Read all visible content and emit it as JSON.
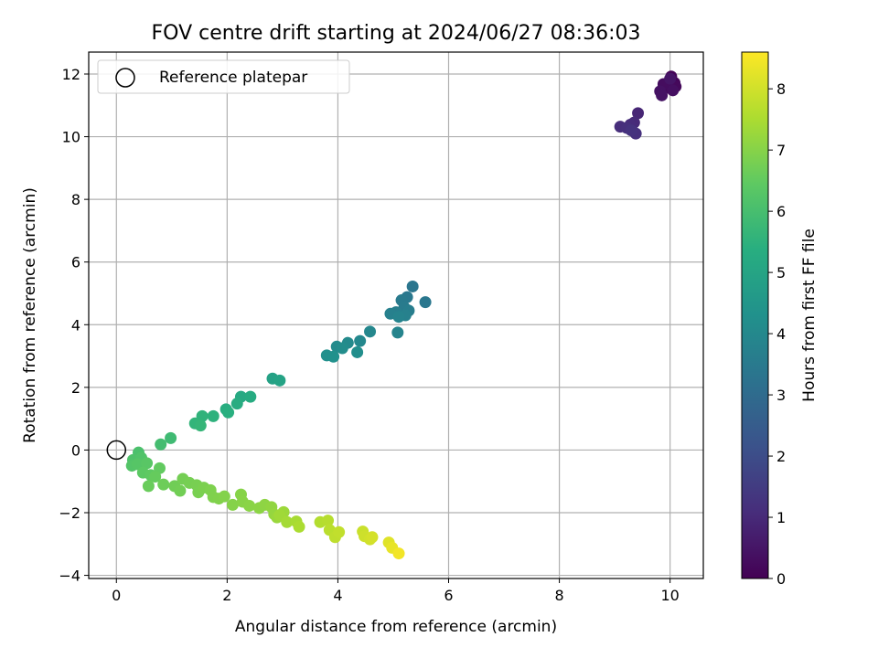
{
  "chart_data": {
    "type": "scatter",
    "title": "FOV centre drift starting at 2024/06/27 08:36:03",
    "xlabel": "Angular distance from reference (arcmin)",
    "ylabel": "Rotation from reference (arcmin)",
    "xlim": [
      -0.5,
      10.6
    ],
    "ylim": [
      -4.1,
      12.7
    ],
    "xticks": [
      0,
      2,
      4,
      6,
      8,
      10
    ],
    "yticks": [
      -4,
      -2,
      0,
      2,
      4,
      6,
      8,
      10,
      12
    ],
    "grid": true,
    "legend": {
      "position": "upper-left",
      "entries": [
        "Reference platepar"
      ]
    },
    "reference_point": {
      "x": 0,
      "y": 0,
      "label": "Reference platepar"
    },
    "colorbar": {
      "label": "Hours from first FF file",
      "colormap": "viridis",
      "range": [
        0,
        8.6
      ],
      "ticks": [
        0,
        1,
        2,
        3,
        4,
        5,
        6,
        7,
        8
      ]
    },
    "points": [
      {
        "x": 10.02,
        "y": 11.92,
        "t": 0.05
      },
      {
        "x": 10.08,
        "y": 11.72,
        "t": 0.1
      },
      {
        "x": 10.0,
        "y": 11.55,
        "t": 0.15
      },
      {
        "x": 10.1,
        "y": 11.6,
        "t": 0.2
      },
      {
        "x": 9.95,
        "y": 11.62,
        "t": 0.25
      },
      {
        "x": 9.88,
        "y": 11.68,
        "t": 0.3
      },
      {
        "x": 10.05,
        "y": 11.48,
        "t": 0.35
      },
      {
        "x": 9.82,
        "y": 11.45,
        "t": 0.4
      },
      {
        "x": 9.85,
        "y": 11.32,
        "t": 0.45
      },
      {
        "x": 10.0,
        "y": 11.85,
        "t": 0.5
      },
      {
        "x": 9.42,
        "y": 10.75,
        "t": 0.9
      },
      {
        "x": 9.35,
        "y": 10.45,
        "t": 1.0
      },
      {
        "x": 9.28,
        "y": 10.38,
        "t": 1.05
      },
      {
        "x": 9.1,
        "y": 10.32,
        "t": 1.1
      },
      {
        "x": 9.22,
        "y": 10.28,
        "t": 1.15
      },
      {
        "x": 9.38,
        "y": 10.1,
        "t": 1.2
      },
      {
        "x": 9.3,
        "y": 10.2,
        "t": 1.25
      },
      {
        "x": 5.35,
        "y": 5.22,
        "t": 3.35
      },
      {
        "x": 5.58,
        "y": 4.72,
        "t": 3.4
      },
      {
        "x": 5.25,
        "y": 4.88,
        "t": 3.45
      },
      {
        "x": 5.15,
        "y": 4.78,
        "t": 3.5
      },
      {
        "x": 5.2,
        "y": 4.55,
        "t": 3.55
      },
      {
        "x": 5.28,
        "y": 4.45,
        "t": 3.6
      },
      {
        "x": 5.05,
        "y": 4.4,
        "t": 3.65
      },
      {
        "x": 4.95,
        "y": 4.35,
        "t": 3.7
      },
      {
        "x": 5.22,
        "y": 4.3,
        "t": 3.75
      },
      {
        "x": 5.1,
        "y": 4.25,
        "t": 3.8
      },
      {
        "x": 5.08,
        "y": 3.75,
        "t": 3.85
      },
      {
        "x": 4.58,
        "y": 3.78,
        "t": 3.95
      },
      {
        "x": 4.4,
        "y": 3.48,
        "t": 4.0
      },
      {
        "x": 4.18,
        "y": 3.42,
        "t": 4.05
      },
      {
        "x": 3.98,
        "y": 3.3,
        "t": 4.1
      },
      {
        "x": 4.08,
        "y": 3.25,
        "t": 4.15
      },
      {
        "x": 4.35,
        "y": 3.12,
        "t": 4.2
      },
      {
        "x": 3.8,
        "y": 3.02,
        "t": 4.25
      },
      {
        "x": 3.92,
        "y": 2.98,
        "t": 4.3
      },
      {
        "x": 2.82,
        "y": 2.28,
        "t": 4.9
      },
      {
        "x": 2.95,
        "y": 2.22,
        "t": 4.95
      },
      {
        "x": 2.25,
        "y": 1.7,
        "t": 5.2
      },
      {
        "x": 2.42,
        "y": 1.7,
        "t": 5.25
      },
      {
        "x": 2.18,
        "y": 1.48,
        "t": 5.3
      },
      {
        "x": 1.98,
        "y": 1.3,
        "t": 5.35
      },
      {
        "x": 2.02,
        "y": 1.2,
        "t": 5.4
      },
      {
        "x": 1.75,
        "y": 1.08,
        "t": 5.5
      },
      {
        "x": 1.55,
        "y": 1.08,
        "t": 5.55
      },
      {
        "x": 1.42,
        "y": 0.85,
        "t": 5.6
      },
      {
        "x": 1.52,
        "y": 0.78,
        "t": 5.65
      },
      {
        "x": 0.98,
        "y": 0.38,
        "t": 5.85
      },
      {
        "x": 0.8,
        "y": 0.18,
        "t": 5.95
      },
      {
        "x": 0.4,
        "y": -0.08,
        "t": 6.1
      },
      {
        "x": 0.3,
        "y": -0.32,
        "t": 6.15
      },
      {
        "x": 0.45,
        "y": -0.25,
        "t": 6.2
      },
      {
        "x": 0.28,
        "y": -0.5,
        "t": 6.25
      },
      {
        "x": 0.38,
        "y": -0.45,
        "t": 6.3
      },
      {
        "x": 0.55,
        "y": -0.42,
        "t": 6.35
      },
      {
        "x": 0.48,
        "y": -0.72,
        "t": 6.4
      },
      {
        "x": 0.62,
        "y": -0.8,
        "t": 6.45
      },
      {
        "x": 0.78,
        "y": -0.58,
        "t": 6.5
      },
      {
        "x": 0.7,
        "y": -0.85,
        "t": 6.55
      },
      {
        "x": 0.58,
        "y": -1.15,
        "t": 6.6
      },
      {
        "x": 0.85,
        "y": -1.1,
        "t": 6.65
      },
      {
        "x": 1.05,
        "y": -1.15,
        "t": 6.7
      },
      {
        "x": 1.15,
        "y": -1.3,
        "t": 6.72
      },
      {
        "x": 1.2,
        "y": -0.92,
        "t": 6.75
      },
      {
        "x": 1.32,
        "y": -1.05,
        "t": 6.78
      },
      {
        "x": 1.45,
        "y": -1.12,
        "t": 6.8
      },
      {
        "x": 1.48,
        "y": -1.35,
        "t": 6.82
      },
      {
        "x": 1.58,
        "y": -1.2,
        "t": 6.85
      },
      {
        "x": 1.7,
        "y": -1.28,
        "t": 6.88
      },
      {
        "x": 1.75,
        "y": -1.5,
        "t": 6.9
      },
      {
        "x": 1.85,
        "y": -1.55,
        "t": 6.92
      },
      {
        "x": 1.95,
        "y": -1.48,
        "t": 6.95
      },
      {
        "x": 2.1,
        "y": -1.75,
        "t": 6.98
      },
      {
        "x": 2.25,
        "y": -1.42,
        "t": 7.0
      },
      {
        "x": 2.28,
        "y": -1.65,
        "t": 7.02
      },
      {
        "x": 2.4,
        "y": -1.78,
        "t": 7.05
      },
      {
        "x": 2.58,
        "y": -1.85,
        "t": 7.08
      },
      {
        "x": 2.68,
        "y": -1.75,
        "t": 7.1
      },
      {
        "x": 2.8,
        "y": -1.82,
        "t": 7.15
      },
      {
        "x": 2.85,
        "y": -2.05,
        "t": 7.2
      },
      {
        "x": 2.9,
        "y": -2.15,
        "t": 7.25
      },
      {
        "x": 3.02,
        "y": -1.98,
        "t": 7.3
      },
      {
        "x": 2.95,
        "y": -2.08,
        "t": 7.35
      },
      {
        "x": 3.08,
        "y": -2.3,
        "t": 7.4
      },
      {
        "x": 3.25,
        "y": -2.28,
        "t": 7.45
      },
      {
        "x": 3.3,
        "y": -2.45,
        "t": 7.5
      },
      {
        "x": 3.68,
        "y": -2.3,
        "t": 7.6
      },
      {
        "x": 3.82,
        "y": -2.25,
        "t": 7.65
      },
      {
        "x": 3.85,
        "y": -2.55,
        "t": 7.7
      },
      {
        "x": 3.95,
        "y": -2.78,
        "t": 7.75
      },
      {
        "x": 4.02,
        "y": -2.62,
        "t": 7.8
      },
      {
        "x": 4.45,
        "y": -2.6,
        "t": 7.9
      },
      {
        "x": 4.48,
        "y": -2.75,
        "t": 7.95
      },
      {
        "x": 4.58,
        "y": -2.85,
        "t": 8.0
      },
      {
        "x": 4.62,
        "y": -2.78,
        "t": 8.05
      },
      {
        "x": 4.92,
        "y": -2.95,
        "t": 8.2
      },
      {
        "x": 4.98,
        "y": -3.12,
        "t": 8.3
      },
      {
        "x": 5.1,
        "y": -3.3,
        "t": 8.45
      }
    ]
  }
}
